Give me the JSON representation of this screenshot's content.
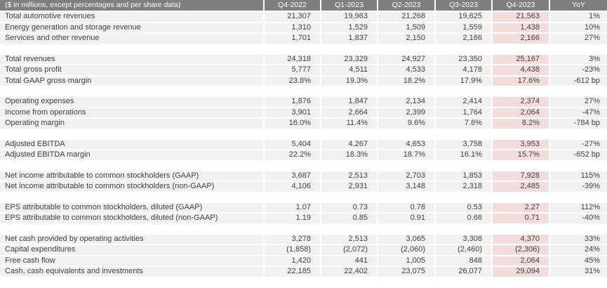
{
  "colors": {
    "header_bg": "#7f7f7f",
    "header_text": "#ffffff",
    "row_bg": "#f1f1f1",
    "highlight_bg": "#f2dddc",
    "text": "#3f3f3f"
  },
  "chart_data": {
    "type": "table",
    "title": "($ in millions, except percentages and per share data)",
    "columns": [
      "Q4-2022",
      "Q1-2023",
      "Q2-2023",
      "Q3-2023",
      "Q4-2023",
      "YoY"
    ],
    "highlight_column": "Q4-2023",
    "sections": [
      {
        "rows": [
          {
            "label": "Total automotive revenues",
            "values": [
              "21,307",
              "19,963",
              "21,268",
              "19,625",
              "21,563",
              "1%"
            ]
          },
          {
            "label": "Energy generation and storage revenue",
            "values": [
              "1,310",
              "1,529",
              "1,509",
              "1,559",
              "1,438",
              "10%"
            ]
          },
          {
            "label": "Services and other revenue",
            "values": [
              "1,701",
              "1,837",
              "2,150",
              "2,166",
              "2,166",
              "27%"
            ]
          }
        ]
      },
      {
        "rows": [
          {
            "label": "Total revenues",
            "values": [
              "24,318",
              "23,329",
              "24,927",
              "23,350",
              "25,167",
              "3%"
            ]
          },
          {
            "label": "Total gross profit",
            "values": [
              "5,777",
              "4,511",
              "4,533",
              "4,178",
              "4,438",
              "-23%"
            ]
          },
          {
            "label": "Total GAAP gross margin",
            "values": [
              "23.8%",
              "19.3%",
              "18.2%",
              "17.9%",
              "17.6%",
              "-612 bp"
            ]
          }
        ]
      },
      {
        "rows": [
          {
            "label": "Operating expenses",
            "values": [
              "1,876",
              "1,847",
              "2,134",
              "2,414",
              "2,374",
              "27%"
            ]
          },
          {
            "label": "Income from operations",
            "values": [
              "3,901",
              "2,664",
              "2,399",
              "1,764",
              "2,064",
              "-47%"
            ]
          },
          {
            "label": "Operating margin",
            "values": [
              "16.0%",
              "11.4%",
              "9.6%",
              "7.6%",
              "8.2%",
              "-784 bp"
            ]
          }
        ]
      },
      {
        "rows": [
          {
            "label": "Adjusted EBITDA",
            "values": [
              "5,404",
              "4,267",
              "4,653",
              "3,758",
              "3,953",
              "-27%"
            ]
          },
          {
            "label": "Adjusted EBITDA margin",
            "values": [
              "22.2%",
              "18.3%",
              "18.7%",
              "16.1%",
              "15.7%",
              "-652 bp"
            ]
          }
        ]
      },
      {
        "rows": [
          {
            "label": "Net income attributable to common stockholders (GAAP)",
            "values": [
              "3,687",
              "2,513",
              "2,703",
              "1,853",
              "7,928",
              "115%"
            ]
          },
          {
            "label": "Net income attributable to common stockholders (non-GAAP)",
            "values": [
              "4,106",
              "2,931",
              "3,148",
              "2,318",
              "2,485",
              "-39%"
            ]
          }
        ]
      },
      {
        "rows": [
          {
            "label": "EPS attributable to common stockholders, diluted (GAAP)",
            "values": [
              "1.07",
              "0.73",
              "0.78",
              "0.53",
              "2.27",
              "112%"
            ]
          },
          {
            "label": "EPS attributable to common stockholders, diluted (non-GAAP)",
            "values": [
              "1.19",
              "0.85",
              "0.91",
              "0.66",
              "0.71",
              "-40%"
            ]
          }
        ]
      },
      {
        "rows": [
          {
            "label": "Net cash provided by operating activities",
            "values": [
              "3,278",
              "2,513",
              "3,065",
              "3,308",
              "4,370",
              "33%"
            ]
          },
          {
            "label": "Capital expenditures",
            "values": [
              "(1,858)",
              "(2,072)",
              "(2,060)",
              "(2,460)",
              "(2,306)",
              "24%"
            ]
          },
          {
            "label": "Free cash flow",
            "values": [
              "1,420",
              "441",
              "1,005",
              "848",
              "2,064",
              "45%"
            ]
          },
          {
            "label": "Cash, cash equivalents and investments",
            "values": [
              "22,185",
              "22,402",
              "23,075",
              "26,077",
              "29,094",
              "31%"
            ]
          }
        ]
      }
    ]
  }
}
